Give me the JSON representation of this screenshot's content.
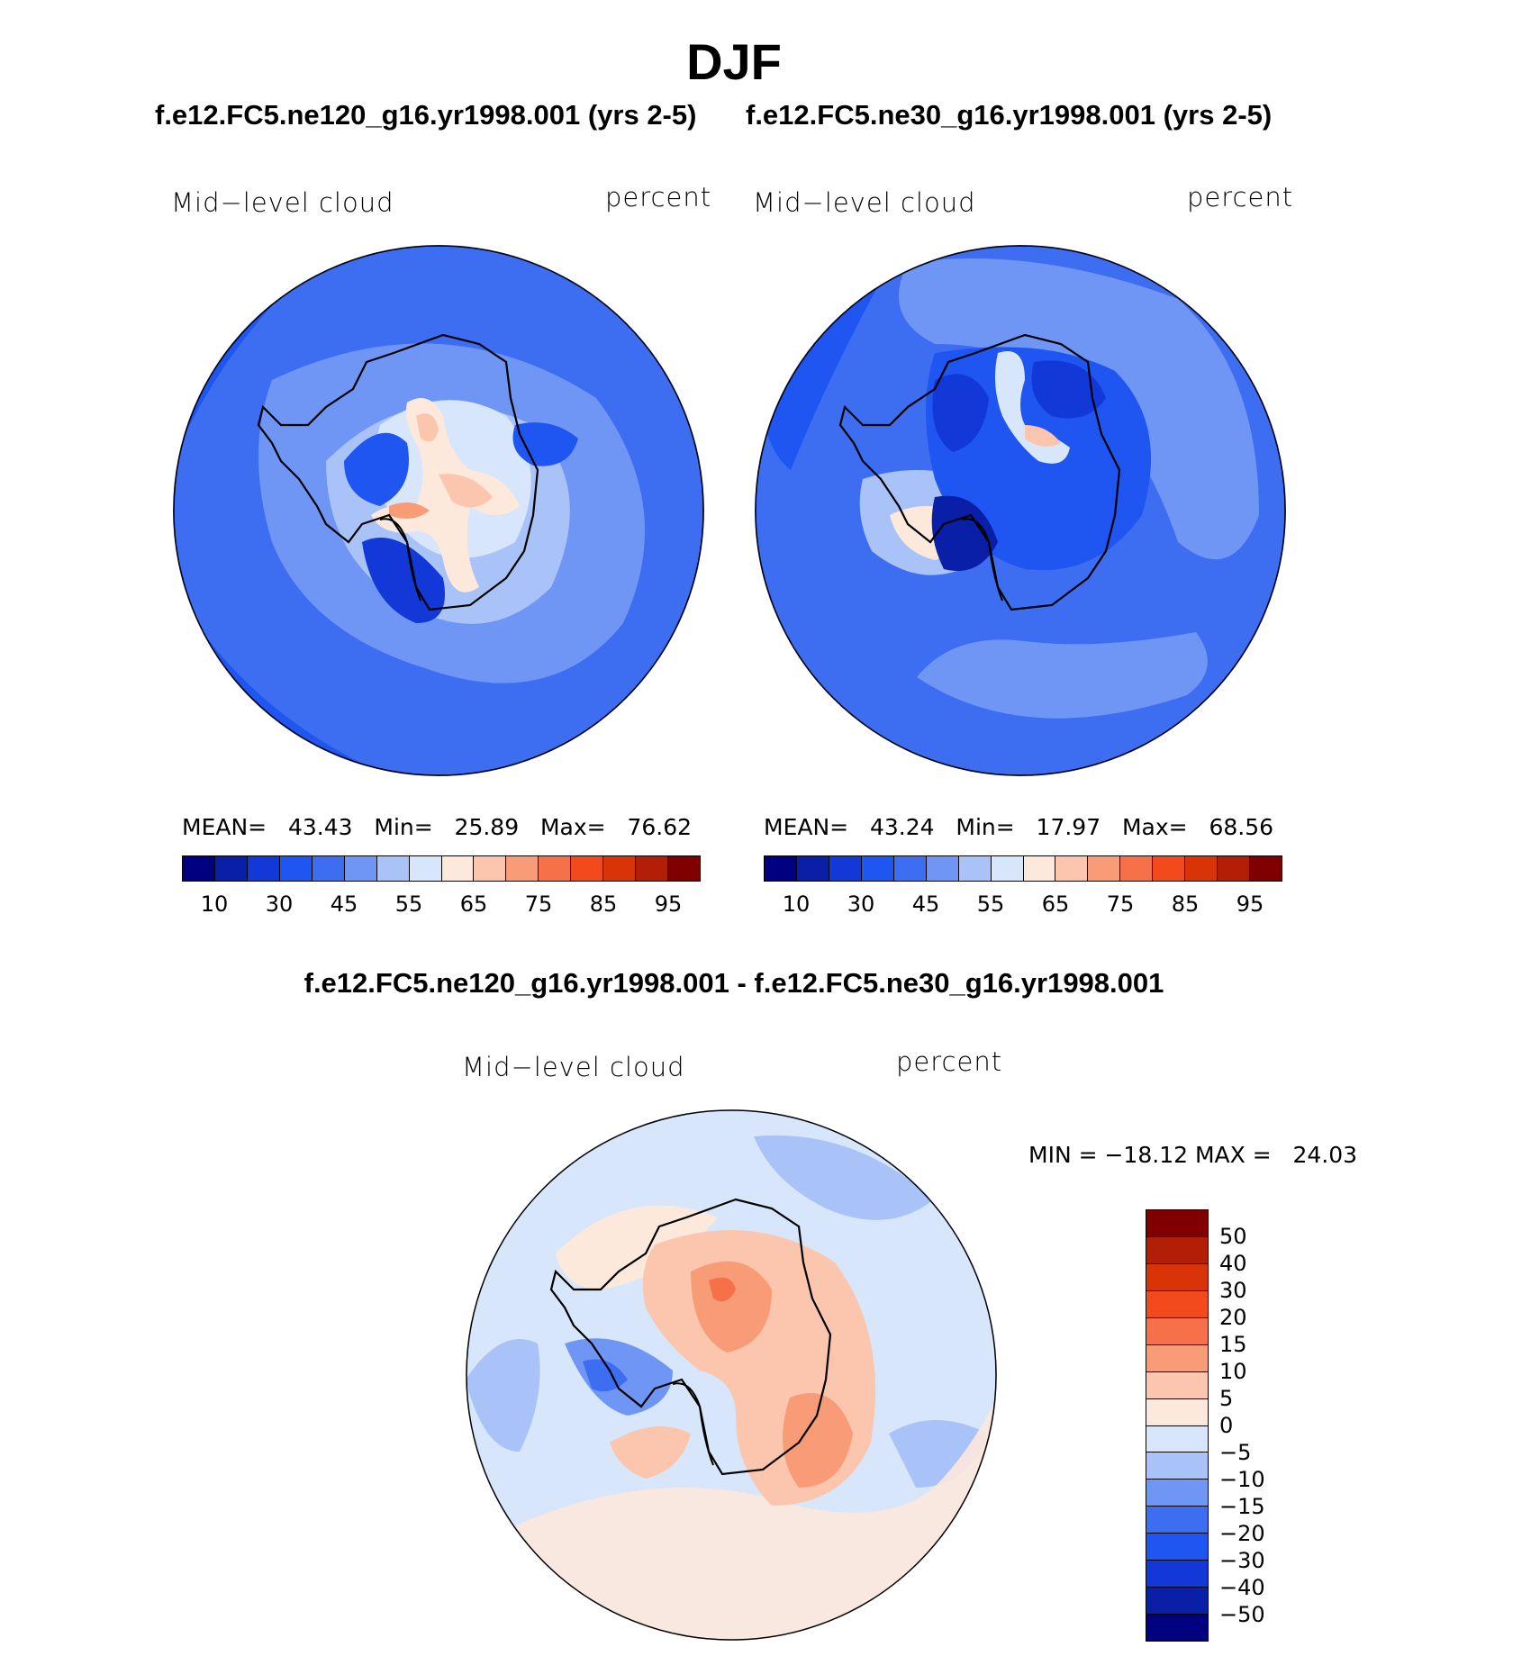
{
  "title": "DJF",
  "panels": [
    {
      "case": "f.e12.FC5.ne120_g16.yr1998.001 (yrs 2-5)",
      "variable": "Mid−level cloud",
      "units": "percent",
      "stats": {
        "mean_label": "MEAN=",
        "mean": "43.43",
        "min_label": "Min=",
        "min": "25.89",
        "max_label": "Max=",
        "max": "76.62"
      },
      "colorbar_ticks": [
        "10",
        "30",
        "45",
        "55",
        "65",
        "75",
        "85",
        "95"
      ]
    },
    {
      "case": "f.e12.FC5.ne30_g16.yr1998.001 (yrs 2-5)",
      "variable": "Mid−level cloud",
      "units": "percent",
      "stats": {
        "mean_label": "MEAN=",
        "mean": "43.24",
        "min_label": "Min=",
        "min": "17.97",
        "max_label": "Max=",
        "max": "68.56"
      },
      "colorbar_ticks": [
        "10",
        "30",
        "45",
        "55",
        "65",
        "75",
        "85",
        "95"
      ]
    }
  ],
  "difference": {
    "title": "f.e12.FC5.ne120_g16.yr1998.001 - f.e12.FC5.ne30_g16.yr1998.001",
    "variable": "Mid−level cloud",
    "units": "percent",
    "minmax_text": "MIN = −18.12 MAX =   24.03",
    "colorbar_ticks": [
      "50",
      "40",
      "30",
      "20",
      "15",
      "10",
      "5",
      "0",
      "−5",
      "−10",
      "−15",
      "−20",
      "−30",
      "−40",
      "−50"
    ]
  },
  "colors": {
    "abs_scale": [
      "#000080",
      "#0a1fa8",
      "#1238d8",
      "#1f55f0",
      "#3d6ef2",
      "#6f96f5",
      "#a9c3f8",
      "#d7e6fb",
      "#fde8dc",
      "#fbc6ad",
      "#f89c78",
      "#f6704a",
      "#f24a1d",
      "#d93308",
      "#b31f06",
      "#800000"
    ],
    "diff_scale": [
      "#800000",
      "#b31f06",
      "#d93308",
      "#f24a1d",
      "#f6704a",
      "#f89c78",
      "#fbc6ad",
      "#fde8dc",
      "#d7e6fb",
      "#a9c3f8",
      "#6f96f5",
      "#3d6ef2",
      "#1f55f0",
      "#1238d8",
      "#0a1fa8",
      "#000080"
    ]
  }
}
